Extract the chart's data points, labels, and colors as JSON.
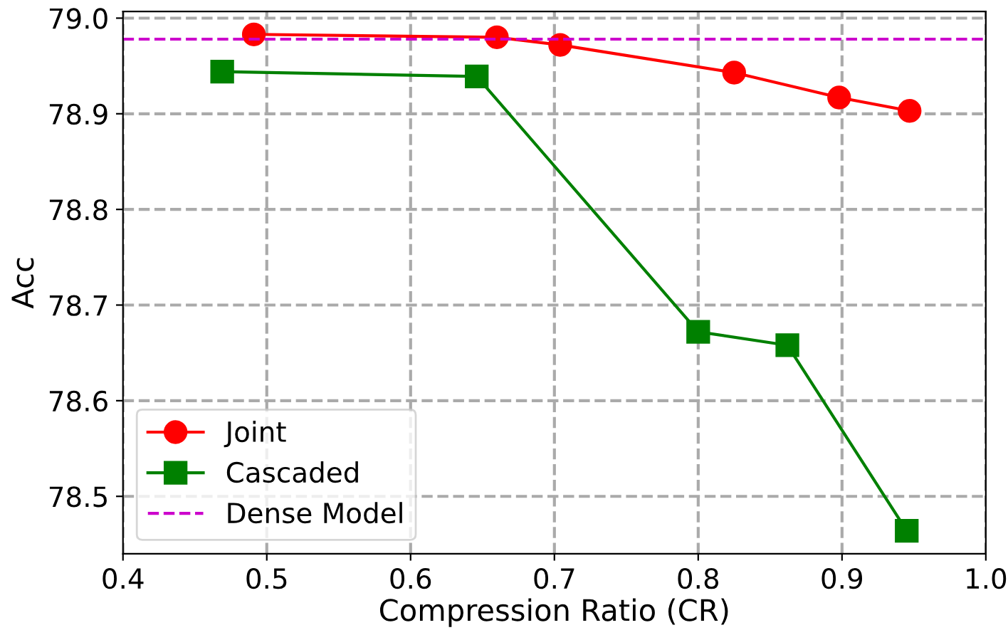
{
  "chart_data": {
    "type": "line",
    "xlabel": "Compression Ratio (CR)",
    "ylabel": "Acc",
    "series": [
      {
        "name": "Joint",
        "color": "#ff0000",
        "marker": "circle",
        "x": [
          0.491,
          0.66,
          0.704,
          0.825,
          0.898,
          0.947
        ],
        "values": [
          78.983,
          78.98,
          78.972,
          78.943,
          78.917,
          78.903
        ]
      },
      {
        "name": "Cascaded",
        "color": "#008000",
        "marker": "square",
        "x": [
          0.469,
          0.646,
          0.8,
          0.862,
          0.945
        ],
        "values": [
          78.944,
          78.939,
          78.672,
          78.658,
          78.464
        ]
      }
    ],
    "ref_lines": [
      {
        "axis": "y",
        "value": 78.978,
        "label": "Dense Model",
        "color": "#cc00cc",
        "line_style": "dashed"
      }
    ],
    "xlim": [
      0.4,
      1.0
    ],
    "xticks": [
      {
        "value": 0.4,
        "label": "0.4"
      },
      {
        "value": 0.5,
        "label": "0.5"
      },
      {
        "value": 0.6,
        "label": "0.6"
      },
      {
        "value": 0.7,
        "label": "0.7"
      },
      {
        "value": 0.8,
        "label": "0.8"
      },
      {
        "value": 0.9,
        "label": "0.9"
      },
      {
        "value": 1.0,
        "label": "1.0"
      }
    ],
    "ylim": [
      78.44,
      79.007
    ],
    "yticks": [
      {
        "value": 78.5,
        "label": "78.5"
      },
      {
        "value": 78.6,
        "label": "78.6"
      },
      {
        "value": 78.7,
        "label": "78.7"
      },
      {
        "value": 78.8,
        "label": "78.8"
      },
      {
        "value": 78.9,
        "label": "78.9"
      },
      {
        "value": 79.0,
        "label": "79.0"
      }
    ],
    "grid": true,
    "legend": "bottom left"
  }
}
